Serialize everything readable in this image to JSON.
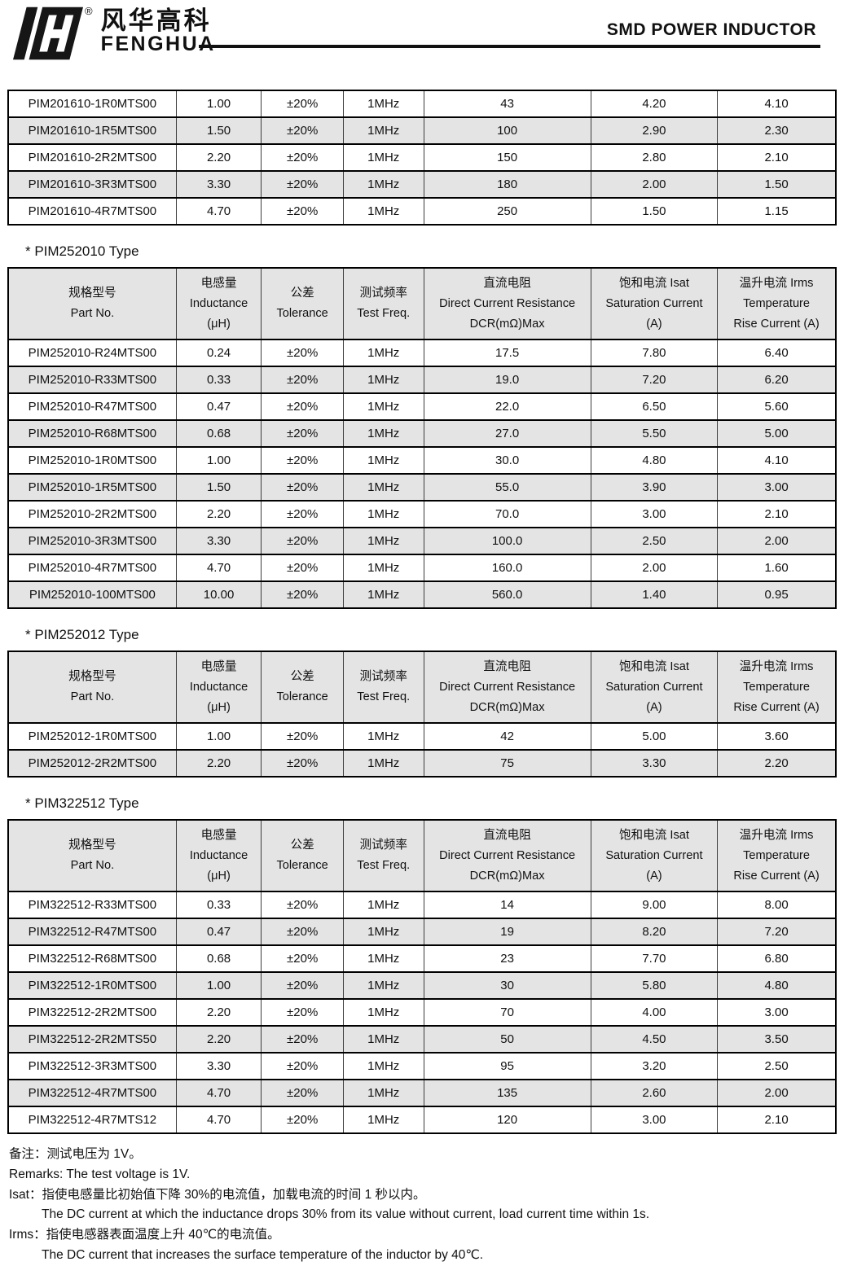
{
  "header": {
    "brand_cn": "风华高科",
    "brand_en": "FENGHUA",
    "registered_mark": "®",
    "doc_title": "SMD POWER INDUCTOR"
  },
  "colors": {
    "stripe_gray": "#e4e4e4",
    "ink_black": "#111111"
  },
  "column_headers": [
    [
      "规格型号",
      "Part No."
    ],
    [
      "电感量",
      "Inductance",
      "(μH)"
    ],
    [
      "公差",
      "Tolerance"
    ],
    [
      "测试频率",
      "Test Freq."
    ],
    [
      "直流电阻",
      "Direct Current Resistance",
      "DCR(mΩ)Max"
    ],
    [
      "饱和电流  Isat",
      "Saturation Current",
      "(A)"
    ],
    [
      "温升电流  Irms",
      "Temperature",
      "Rise Current (A)"
    ]
  ],
  "sections": [
    {
      "heading": null,
      "rows": [
        [
          "PIM201610-1R0MTS00",
          "1.00",
          "±20%",
          "1MHz",
          "43",
          "4.20",
          "4.10"
        ],
        [
          "PIM201610-1R5MTS00",
          "1.50",
          "±20%",
          "1MHz",
          "100",
          "2.90",
          "2.30"
        ],
        [
          "PIM201610-2R2MTS00",
          "2.20",
          "±20%",
          "1MHz",
          "150",
          "2.80",
          "2.10"
        ],
        [
          "PIM201610-3R3MTS00",
          "3.30",
          "±20%",
          "1MHz",
          "180",
          "2.00",
          "1.50"
        ],
        [
          "PIM201610-4R7MTS00",
          "4.70",
          "±20%",
          "1MHz",
          "250",
          "1.50",
          "1.15"
        ]
      ]
    },
    {
      "heading": "*  PIM252010 Type",
      "rows": [
        [
          "PIM252010-R24MTS00",
          "0.24",
          "±20%",
          "1MHz",
          "17.5",
          "7.80",
          "6.40"
        ],
        [
          "PIM252010-R33MTS00",
          "0.33",
          "±20%",
          "1MHz",
          "19.0",
          "7.20",
          "6.20"
        ],
        [
          "PIM252010-R47MTS00",
          "0.47",
          "±20%",
          "1MHz",
          "22.0",
          "6.50",
          "5.60"
        ],
        [
          "PIM252010-R68MTS00",
          "0.68",
          "±20%",
          "1MHz",
          "27.0",
          "5.50",
          "5.00"
        ],
        [
          "PIM252010-1R0MTS00",
          "1.00",
          "±20%",
          "1MHz",
          "30.0",
          "4.80",
          "4.10"
        ],
        [
          "PIM252010-1R5MTS00",
          "1.50",
          "±20%",
          "1MHz",
          "55.0",
          "3.90",
          "3.00"
        ],
        [
          "PIM252010-2R2MTS00",
          "2.20",
          "±20%",
          "1MHz",
          "70.0",
          "3.00",
          "2.10"
        ],
        [
          "PIM252010-3R3MTS00",
          "3.30",
          "±20%",
          "1MHz",
          "100.0",
          "2.50",
          "2.00"
        ],
        [
          "PIM252010-4R7MTS00",
          "4.70",
          "±20%",
          "1MHz",
          "160.0",
          "2.00",
          "1.60"
        ],
        [
          "PIM252010-100MTS00",
          "10.00",
          "±20%",
          "1MHz",
          "560.0",
          "1.40",
          "0.95"
        ]
      ]
    },
    {
      "heading": "*  PIM252012 Type",
      "rows": [
        [
          "PIM252012-1R0MTS00",
          "1.00",
          "±20%",
          "1MHz",
          "42",
          "5.00",
          "3.60"
        ],
        [
          "PIM252012-2R2MTS00",
          "2.20",
          "±20%",
          "1MHz",
          "75",
          "3.30",
          "2.20"
        ]
      ]
    },
    {
      "heading": "*  PIM322512 Type",
      "rows": [
        [
          "PIM322512-R33MTS00",
          "0.33",
          "±20%",
          "1MHz",
          "14",
          "9.00",
          "8.00"
        ],
        [
          "PIM322512-R47MTS00",
          "0.47",
          "±20%",
          "1MHz",
          "19",
          "8.20",
          "7.20"
        ],
        [
          "PIM322512-R68MTS00",
          "0.68",
          "±20%",
          "1MHz",
          "23",
          "7.70",
          "6.80"
        ],
        [
          "PIM322512-1R0MTS00",
          "1.00",
          "±20%",
          "1MHz",
          "30",
          "5.80",
          "4.80"
        ],
        [
          "PIM322512-2R2MTS00",
          "2.20",
          "±20%",
          "1MHz",
          "70",
          "4.00",
          "3.00"
        ],
        [
          "PIM322512-2R2MTS50",
          "2.20",
          "±20%",
          "1MHz",
          "50",
          "4.50",
          "3.50"
        ],
        [
          "PIM322512-3R3MTS00",
          "3.30",
          "±20%",
          "1MHz",
          "95",
          "3.20",
          "2.50"
        ],
        [
          "PIM322512-4R7MTS00",
          "4.70",
          "±20%",
          "1MHz",
          "135",
          "2.60",
          "2.00"
        ],
        [
          "PIM322512-4R7MTS12",
          "4.70",
          "±20%",
          "1MHz",
          "120",
          "3.00",
          "2.10"
        ]
      ]
    }
  ],
  "notes": [
    {
      "text": "备注：测试电压为 1V。",
      "indent": false
    },
    {
      "text": "Remarks: The test voltage is 1V.",
      "indent": false
    },
    {
      "text": "Isat：指使电感量比初始值下降 30%的电流值，加载电流的时间 1 秒以内。",
      "indent": false
    },
    {
      "text": "The DC current at which the inductance drops 30% from its value without current, load current time within 1s.",
      "indent": true
    },
    {
      "text": "Irms：指使电感器表面温度上升 40℃的电流值。",
      "indent": false
    },
    {
      "text": "The DC current that increases the surface temperature of the inductor by 40℃.",
      "indent": true
    }
  ]
}
